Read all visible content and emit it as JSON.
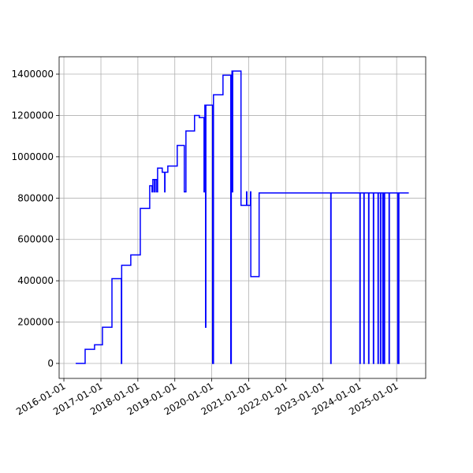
{
  "chart_data": {
    "type": "line",
    "drawstyle": "steps-post",
    "color": "#0000ff",
    "grid": true,
    "x": [
      "2016-04-27",
      "2016-07-29",
      "2016-10-30",
      "2017-01-16",
      "2017-04-20",
      "2017-07-22",
      "2017-07-25",
      "2017-10-23",
      "2018-01-25",
      "2018-04-28",
      "2018-05-21",
      "2018-05-29",
      "2018-06-14",
      "2018-06-21",
      "2018-07-07",
      "2018-07-15",
      "2018-08-30",
      "2018-09-23",
      "2018-09-26",
      "2018-10-24",
      "2019-01-25",
      "2019-04-05",
      "2019-04-21",
      "2019-07-15",
      "2019-08-31",
      "2019-10-17",
      "2019-10-25",
      "2019-11-01",
      "2019-11-04",
      "2020-01-10",
      "2020-01-18",
      "2020-04-21",
      "2020-07-07",
      "2020-07-12",
      "2020-07-15",
      "2020-07-19",
      "2020-07-22",
      "2020-07-26",
      "2020-10-16",
      "2020-12-10",
      "2020-12-13",
      "2021-01-18",
      "2021-01-21",
      "2021-04-13",
      "2023-03-22",
      "2023-03-25",
      "2024-01-04",
      "2024-01-07",
      "2024-02-12",
      "2024-02-15",
      "2024-03-30",
      "2024-04-02",
      "2024-05-16",
      "2024-05-19",
      "2024-07-01",
      "2024-07-04",
      "2024-07-25",
      "2024-07-28",
      "2024-08-17",
      "2024-08-20",
      "2024-09-01",
      "2024-09-04",
      "2024-10-18",
      "2024-10-21",
      "2025-01-12",
      "2025-01-15",
      "2025-01-20",
      "2025-01-23",
      "2025-05-01"
    ],
    "values": [
      0,
      68000,
      90000,
      175000,
      410000,
      0,
      475000,
      525000,
      750000,
      860000,
      830000,
      890000,
      830000,
      890000,
      830000,
      945000,
      925000,
      830000,
      925000,
      955000,
      1055000,
      830000,
      1125000,
      1200000,
      1190000,
      830000,
      1250000,
      175000,
      1250000,
      0,
      1300000,
      1395000,
      0,
      1395000,
      830000,
      1415000,
      830000,
      1415000,
      765000,
      830000,
      765000,
      830000,
      420000,
      825000,
      0,
      825000,
      0,
      825000,
      0,
      825000,
      0,
      825000,
      0,
      825000,
      0,
      825000,
      0,
      825000,
      0,
      825000,
      0,
      825000,
      0,
      825000,
      0,
      825000,
      0,
      825000,
      825000
    ],
    "xlim": [
      "2015-11-15",
      "2025-10-15"
    ],
    "xticks": [
      "2016-01-01",
      "2017-01-01",
      "2018-01-01",
      "2019-01-01",
      "2020-01-01",
      "2021-01-01",
      "2022-01-01",
      "2023-01-01",
      "2024-01-01",
      "2025-01-01"
    ],
    "ylim": [
      -72500,
      1484000
    ],
    "yticks": [
      0,
      200000,
      400000,
      600000,
      800000,
      1000000,
      1200000,
      1400000
    ]
  }
}
